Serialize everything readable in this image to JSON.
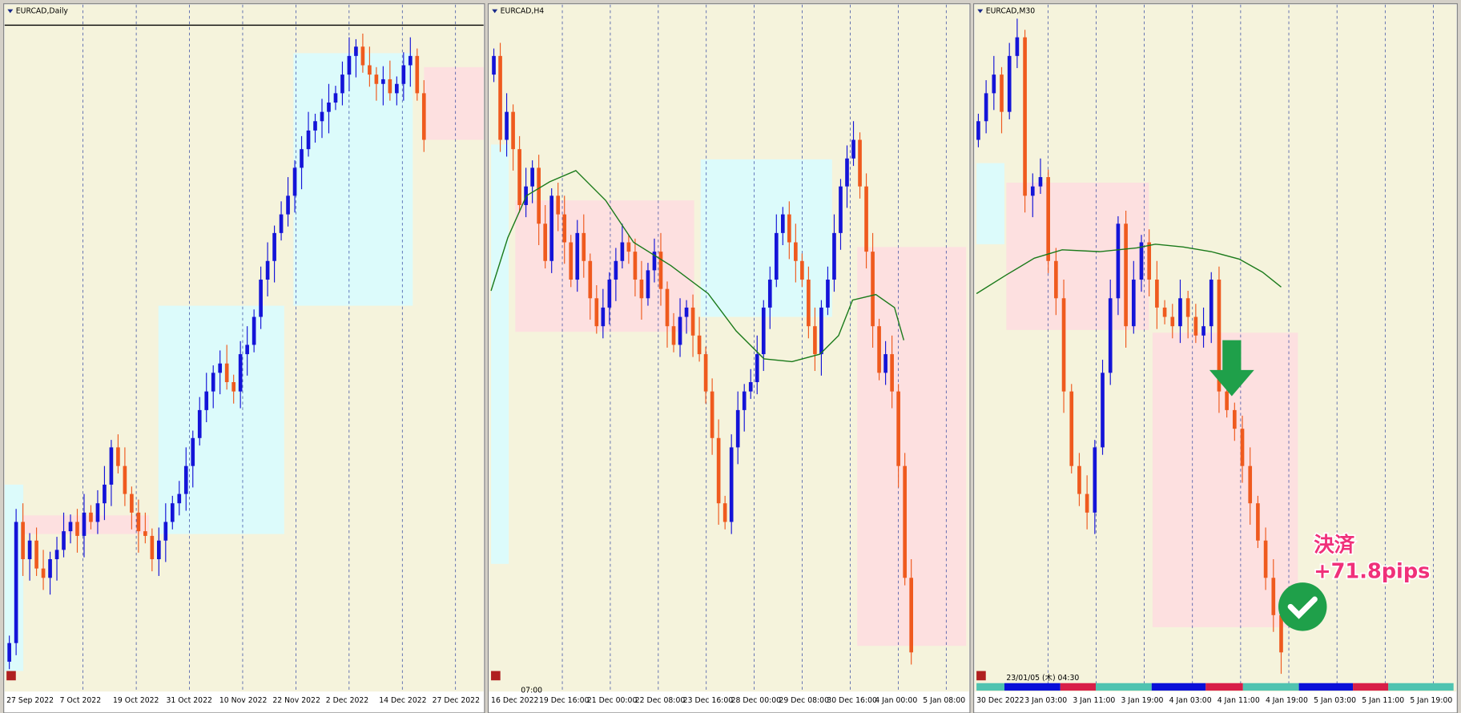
{
  "panels": [
    {
      "title": "EURCAD,Daily",
      "xlabels": [
        "27 Sep 2022",
        "7 Oct 2022",
        "19 Oct 2022",
        "31 Oct 2022",
        "10 Nov 2022",
        "22 Nov 2022",
        "2 Dec 2022",
        "14 Dec 2022",
        "27 Dec 2022"
      ]
    },
    {
      "title": "EURCAD,H4",
      "time_label": "07:00",
      "xlabels": [
        "16 Dec 2022",
        "19 Dec 16:00",
        "21 Dec 00:00",
        "22 Dec 08:00",
        "23 Dec 16:00",
        "28 Dec 00:00",
        "29 Dec 08:00",
        "30 Dec 16:00",
        "4 Jan 00:00",
        "5 Jan 08:00"
      ]
    },
    {
      "title": "EURCAD,M30",
      "timestamp": "23/01/05 (木) 04:30",
      "xlabels": [
        "30 Dec 2022",
        "3 Jan 03:00",
        "3 Jan 11:00",
        "3 Jan 19:00",
        "4 Jan 03:00",
        "4 Jan 11:00",
        "4 Jan 19:00",
        "5 Jan 03:00",
        "5 Jan 11:00",
        "5 Jan 19:00"
      ],
      "annotation": {
        "line1": "決済",
        "line2": "+71.8pips"
      }
    }
  ]
}
